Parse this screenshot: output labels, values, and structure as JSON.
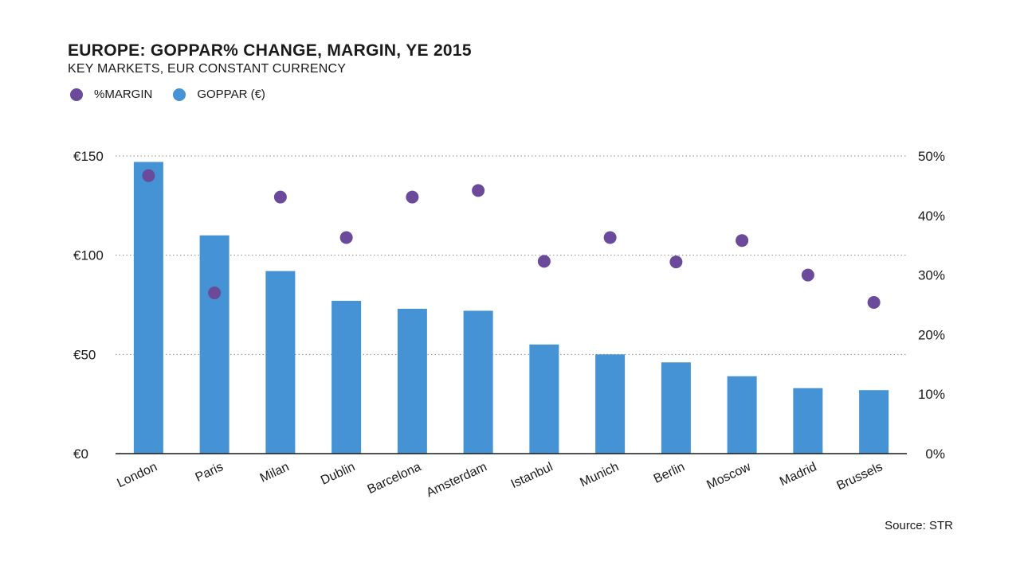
{
  "chart_data": {
    "type": "bar",
    "title": "EUROPE: GOPPAR% CHANGE, MARGIN, YE 2015",
    "subtitle": "KEY MARKETS, EUR CONSTANT CURRENCY",
    "categories": [
      "London",
      "Paris",
      "Milan",
      "Dublin",
      "Barcelona",
      "Amsterdam",
      "Istanbul",
      "Munich",
      "Berlin",
      "Moscow",
      "Madrid",
      "Brussels"
    ],
    "series": [
      {
        "name": "GOPPAR (€)",
        "kind": "bar",
        "axis": "left",
        "color": "#4592d4",
        "values": [
          147,
          110,
          92,
          77,
          73,
          72,
          55,
          50,
          46,
          39,
          33,
          32
        ]
      },
      {
        "name": "%MARGIN",
        "kind": "dot",
        "axis": "right",
        "color": "#6b4a9c",
        "values": [
          46.7,
          27.0,
          43.1,
          36.3,
          43.1,
          44.2,
          32.3,
          36.3,
          32.2,
          35.8,
          30.0,
          25.4
        ]
      }
    ],
    "y_left": {
      "ylim": [
        0,
        150
      ],
      "ticks": [
        0,
        50,
        100,
        150
      ],
      "tick_labels": [
        "€0",
        "€50",
        "€100",
        "€150"
      ]
    },
    "y_right": {
      "ylim": [
        0,
        50
      ],
      "ticks": [
        0,
        10,
        20,
        30,
        40,
        50
      ],
      "tick_labels": [
        "0%",
        "10%",
        "20%",
        "30%",
        "40%",
        "50%"
      ]
    },
    "grid": "dotted-horizontal",
    "legend_position": "top-left"
  },
  "legend": [
    {
      "label": "%MARGIN",
      "color": "#6b4a9c"
    },
    {
      "label": "GOPPAR (€)",
      "color": "#4592d4"
    }
  ],
  "source": "Source: STR"
}
